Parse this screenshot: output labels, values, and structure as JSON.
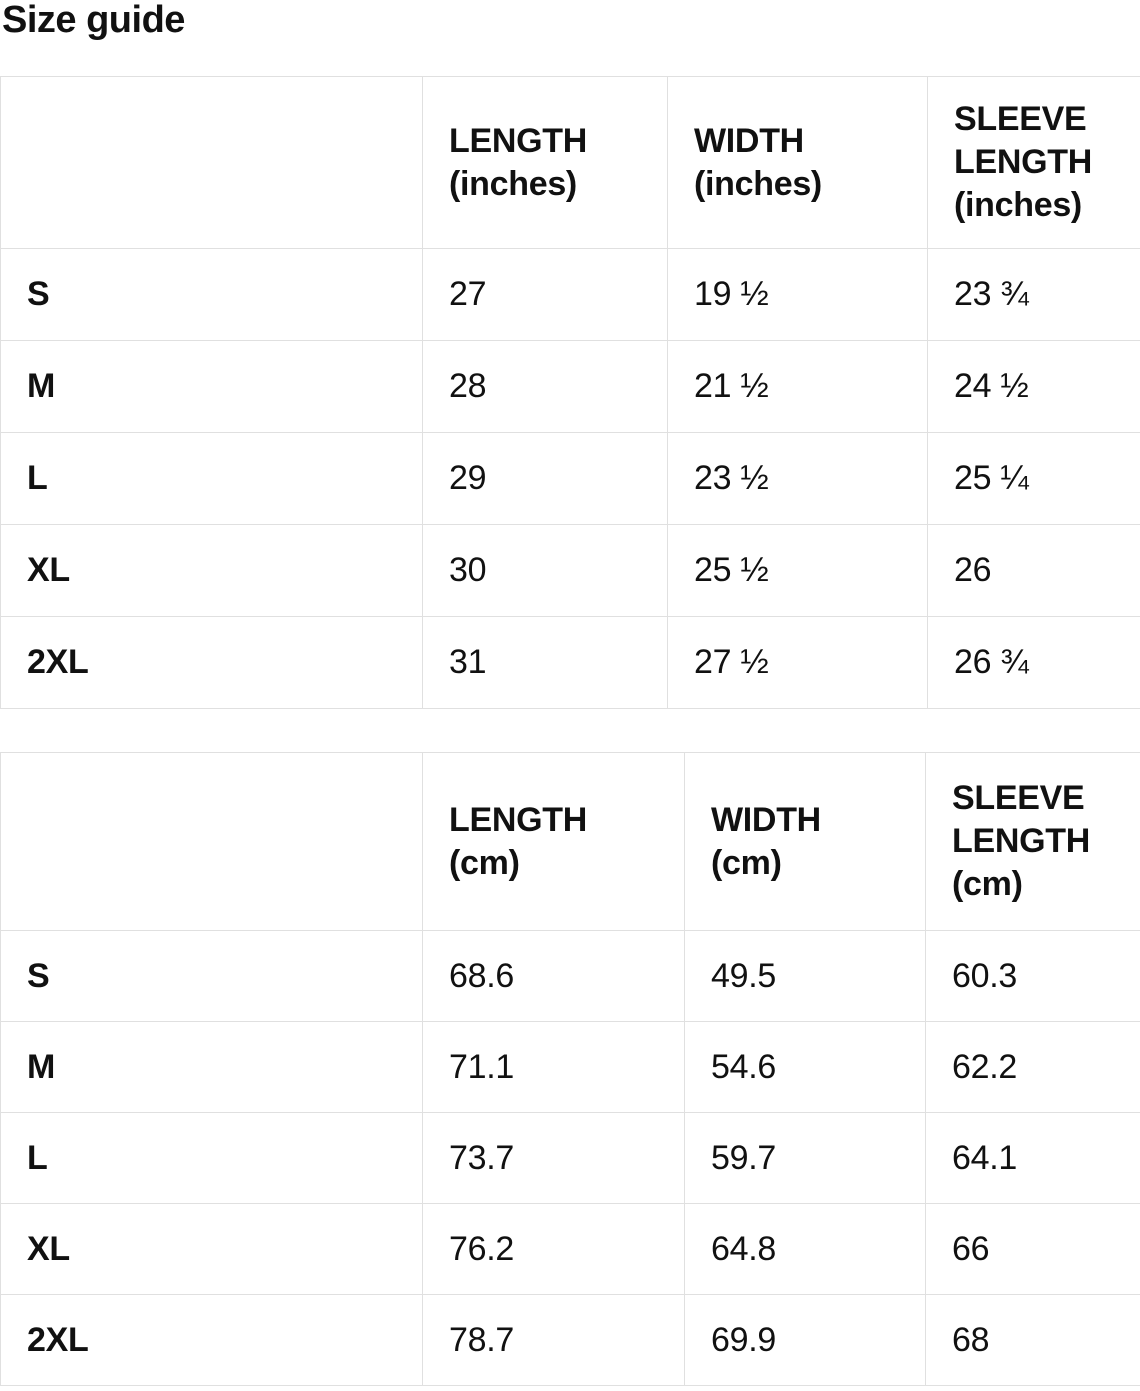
{
  "title": "Size guide",
  "colors": {
    "text": "#111111",
    "border": "#e0e0e0",
    "background": "#ffffff"
  },
  "tables": [
    {
      "headers": [
        "",
        "LENGTH (inches)",
        "WIDTH (inches)",
        "SLEEVE LENGTH (inches)"
      ],
      "rows": [
        {
          "size": "S",
          "values": [
            "27",
            "19 ½",
            "23 ¾"
          ]
        },
        {
          "size": "M",
          "values": [
            "28",
            "21 ½",
            "24 ½"
          ]
        },
        {
          "size": "L",
          "values": [
            "29",
            "23 ½",
            "25 ¼"
          ]
        },
        {
          "size": "XL",
          "values": [
            "30",
            "25 ½",
            "26"
          ]
        },
        {
          "size": "2XL",
          "values": [
            "31",
            "27 ½",
            "26 ¾"
          ]
        }
      ]
    },
    {
      "headers": [
        "",
        "LENGTH (cm)",
        "WIDTH (cm)",
        "SLEEVE LENGTH (cm)"
      ],
      "rows": [
        {
          "size": "S",
          "values": [
            "68.6",
            "49.5",
            "60.3"
          ]
        },
        {
          "size": "M",
          "values": [
            "71.1",
            "54.6",
            "62.2"
          ]
        },
        {
          "size": "L",
          "values": [
            "73.7",
            "59.7",
            "64.1"
          ]
        },
        {
          "size": "XL",
          "values": [
            "76.2",
            "64.8",
            "66"
          ]
        },
        {
          "size": "2XL",
          "values": [
            "78.7",
            "69.9",
            "68"
          ]
        }
      ]
    }
  ]
}
